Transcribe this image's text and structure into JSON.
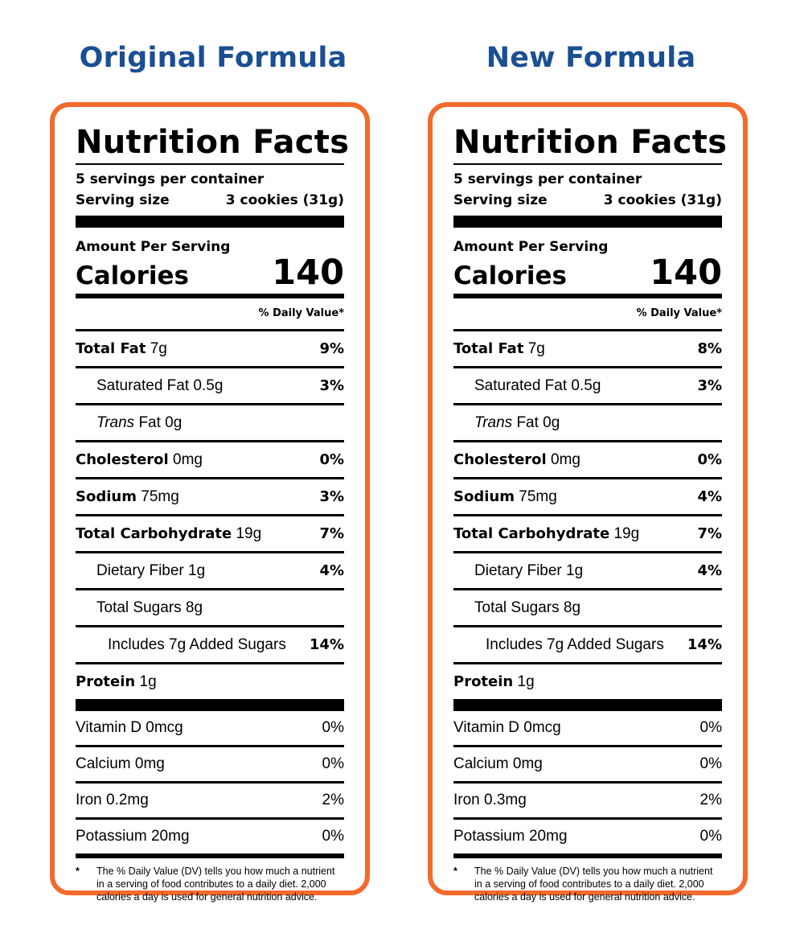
{
  "left": {
    "heading": "Original Formula",
    "title": "Nutrition Facts",
    "servings": "5 servings per container",
    "serving_size_label": "Serving size",
    "serving_size_value": "3 cookies (31g)",
    "amount_per_serving": "Amount Per Serving",
    "calories_label": "Calories",
    "calories_value": "140",
    "dv_header": "% Daily Value*",
    "total_fat": {
      "label": "Total Fat",
      "amount": "7g",
      "dv": "9%"
    },
    "sat_fat": {
      "label": "Saturated Fat 0.5g",
      "dv": "3%"
    },
    "trans_fat": {
      "label_italic": "Trans",
      "label": "Fat 0g"
    },
    "cholesterol": {
      "label": "Cholesterol",
      "amount": "0mg",
      "dv": "0%"
    },
    "sodium": {
      "label": "Sodium",
      "amount": "75mg",
      "dv": "3%"
    },
    "total_carb": {
      "label": "Total Carbohydrate",
      "amount": "19g",
      "dv": "7%"
    },
    "fiber": {
      "label": "Dietary Fiber 1g",
      "dv": "4%"
    },
    "sugars": {
      "label": "Total Sugars 8g"
    },
    "added_sugars": {
      "label": "Includes 7g Added Sugars",
      "dv": "14%"
    },
    "protein": {
      "label": "Protein",
      "amount": "1g"
    },
    "vitamin_d": {
      "label": "Vitamin D 0mcg",
      "dv": "0%"
    },
    "calcium": {
      "label": "Calcium 0mg",
      "dv": "0%"
    },
    "iron": {
      "label": "Iron 0.2mg",
      "dv": "2%"
    },
    "potassium": {
      "label": "Potassium 20mg",
      "dv": "0%"
    },
    "footnote_star": "*",
    "footnote": "The % Daily Value (DV) tells you how much a nutrient in a serving of food contributes to a daily diet. 2,000 calories a day is used for general nutrition advice."
  },
  "right": {
    "heading": "New Formula",
    "title": "Nutrition Facts",
    "servings": "5 servings per container",
    "serving_size_label": "Serving size",
    "serving_size_value": "3 cookies (31g)",
    "amount_per_serving": "Amount Per Serving",
    "calories_label": "Calories",
    "calories_value": "140",
    "dv_header": "% Daily Value*",
    "total_fat": {
      "label": "Total Fat",
      "amount": "7g",
      "dv": "8%"
    },
    "sat_fat": {
      "label": "Saturated Fat 0.5g",
      "dv": "3%"
    },
    "trans_fat": {
      "label_italic": "Trans",
      "label": "Fat 0g"
    },
    "cholesterol": {
      "label": "Cholesterol",
      "amount": "0mg",
      "dv": "0%"
    },
    "sodium": {
      "label": "Sodium",
      "amount": "75mg",
      "dv": "4%"
    },
    "total_carb": {
      "label": "Total Carbohydrate",
      "amount": "19g",
      "dv": "7%"
    },
    "fiber": {
      "label": "Dietary Fiber 1g",
      "dv": "4%"
    },
    "sugars": {
      "label": "Total Sugars 8g"
    },
    "added_sugars": {
      "label": "Includes 7g Added Sugars",
      "dv": "14%"
    },
    "protein": {
      "label": "Protein",
      "amount": "1g"
    },
    "vitamin_d": {
      "label": "Vitamin D 0mcg",
      "dv": "0%"
    },
    "calcium": {
      "label": "Calcium 0mg",
      "dv": "0%"
    },
    "iron": {
      "label": "Iron 0.3mg",
      "dv": "2%"
    },
    "potassium": {
      "label": "Potassium 20mg",
      "dv": "0%"
    },
    "footnote_star": "*",
    "footnote": "The % Daily Value (DV) tells you how much a nutrient in a serving of food contributes to a daily diet. 2,000 calories a day is used for general nutrition advice."
  },
  "colors": {
    "heading": "#1b4f93",
    "panel_border": "#f26b2d"
  }
}
